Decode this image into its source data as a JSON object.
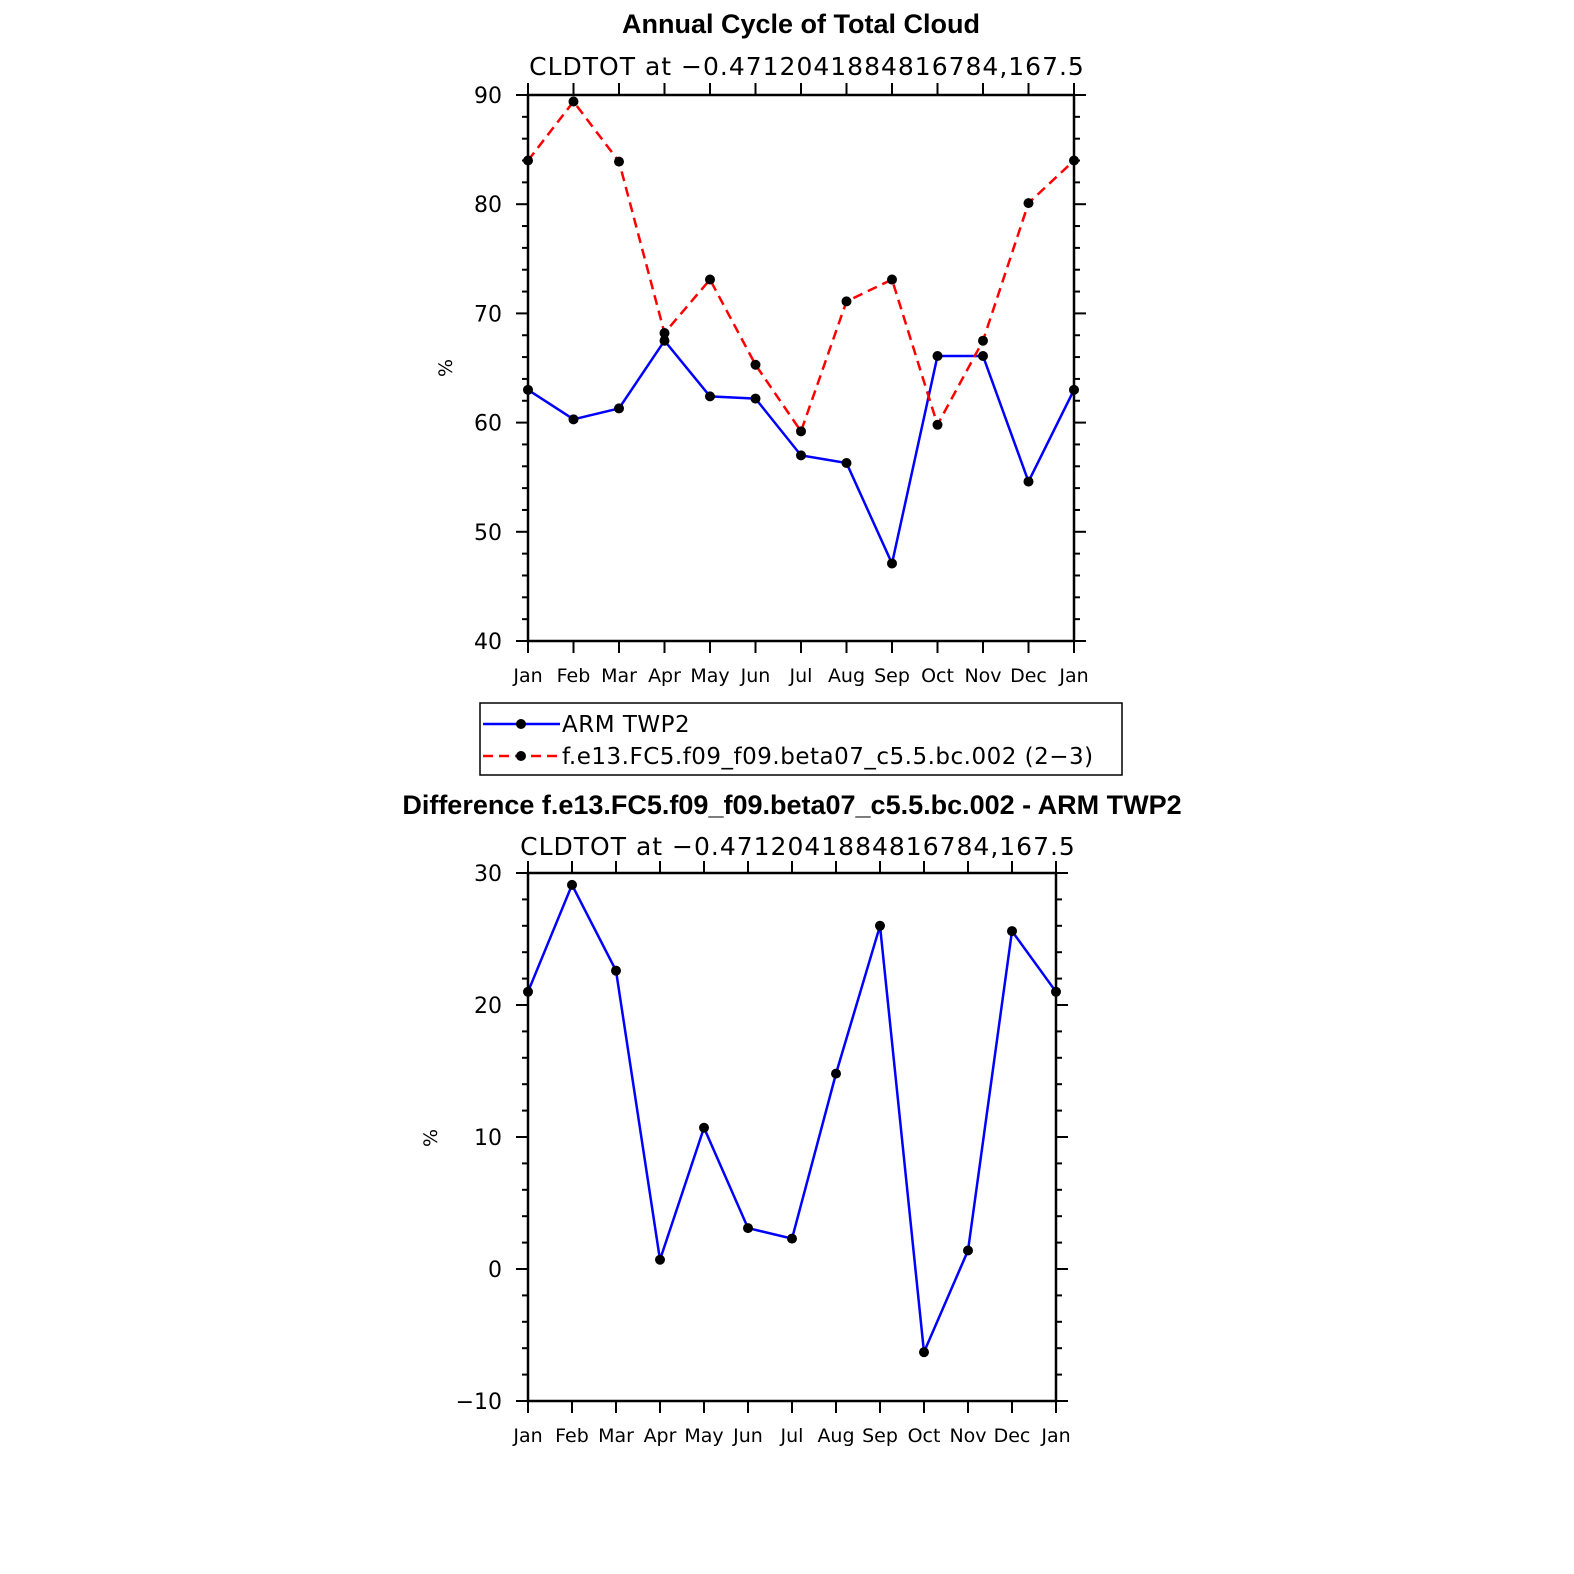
{
  "chart_data": [
    {
      "type": "line",
      "title": "Annual Cycle of Total Cloud",
      "subtitle": "CLDTOT at −0.4712041884816784,167.5",
      "ylabel": "%",
      "ylim": [
        40,
        90
      ],
      "yticks": [
        40,
        50,
        60,
        70,
        80,
        90
      ],
      "ytick_labels": [
        "40",
        "50",
        "60",
        "70",
        "80",
        "90"
      ],
      "categories": [
        "Jan",
        "Feb",
        "Mar",
        "Apr",
        "May",
        "Jun",
        "Jul",
        "Aug",
        "Sep",
        "Oct",
        "Nov",
        "Dec",
        "Jan"
      ],
      "series": [
        {
          "name": "ARM  TWP2",
          "color": "#0000ff",
          "dash": "solid",
          "values": [
            63.0,
            60.3,
            61.3,
            67.5,
            62.4,
            62.2,
            57.0,
            56.3,
            47.1,
            66.1,
            66.1,
            54.6,
            63.0
          ]
        },
        {
          "name": "f.e13.FC5.f09_f09.beta07_c5.5.bc.002 (2−3)",
          "color": "#ff0000",
          "dash": "dashed",
          "values": [
            84.0,
            89.4,
            83.9,
            68.2,
            73.1,
            65.3,
            59.2,
            71.1,
            73.1,
            59.8,
            67.5,
            80.1,
            84.0
          ]
        }
      ],
      "legend": [
        {
          "label": "ARM  TWP2",
          "color": "#0000ff",
          "dash": "solid"
        },
        {
          "label": "f.e13.FC5.f09_f09.beta07_c5.5.bc.002 (2−3)",
          "color": "#ff0000",
          "dash": "dashed"
        }
      ]
    },
    {
      "type": "line",
      "title": "Difference f.e13.FC5.f09_f09.beta07_c5.5.bc.002 - ARM TWP2",
      "subtitle": "CLDTOT at −0.4712041884816784,167.5",
      "ylabel": "%",
      "ylim": [
        -10,
        30
      ],
      "yticks": [
        -10,
        0,
        10,
        20,
        30
      ],
      "ytick_labels": [
        "−10",
        "0",
        "10",
        "20",
        "30"
      ],
      "categories": [
        "Jan",
        "Feb",
        "Mar",
        "Apr",
        "May",
        "Jun",
        "Jul",
        "Aug",
        "Sep",
        "Oct",
        "Nov",
        "Dec",
        "Jan"
      ],
      "series": [
        {
          "name": "Difference",
          "color": "#0000ff",
          "dash": "solid",
          "values": [
            21.0,
            29.1,
            22.6,
            0.7,
            10.7,
            3.1,
            2.3,
            14.8,
            26.0,
            -6.3,
            1.4,
            25.6,
            21.0
          ]
        }
      ]
    }
  ]
}
